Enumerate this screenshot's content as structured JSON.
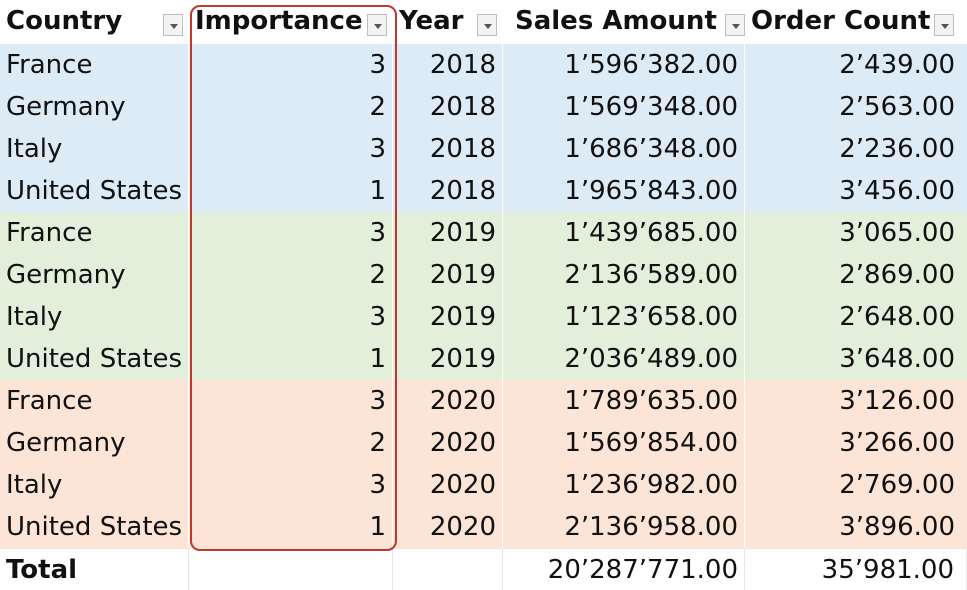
{
  "headers": [
    "Country",
    "Importance",
    "Year",
    "Sales Amount",
    "Order Count"
  ],
  "rows": [
    {
      "country": "France",
      "importance": "3",
      "year": "2018",
      "sales": "1’596’382.00",
      "orders": "2’439.00"
    },
    {
      "country": "Germany",
      "importance": "2",
      "year": "2018",
      "sales": "1’569’348.00",
      "orders": "2’563.00"
    },
    {
      "country": "Italy",
      "importance": "3",
      "year": "2018",
      "sales": "1’686’348.00",
      "orders": "2’236.00"
    },
    {
      "country": "United States",
      "importance": "1",
      "year": "2018",
      "sales": "1’965’843.00",
      "orders": "3’456.00"
    },
    {
      "country": "France",
      "importance": "3",
      "year": "2019",
      "sales": "1’439’685.00",
      "orders": "3’065.00"
    },
    {
      "country": "Germany",
      "importance": "2",
      "year": "2019",
      "sales": "2’136’589.00",
      "orders": "2’869.00"
    },
    {
      "country": "Italy",
      "importance": "3",
      "year": "2019",
      "sales": "1’123’658.00",
      "orders": "2’648.00"
    },
    {
      "country": "United States",
      "importance": "1",
      "year": "2019",
      "sales": "2’036’489.00",
      "orders": "3’648.00"
    },
    {
      "country": "France",
      "importance": "3",
      "year": "2020",
      "sales": "1’789’635.00",
      "orders": "3’126.00"
    },
    {
      "country": "Germany",
      "importance": "2",
      "year": "2020",
      "sales": "1’569’854.00",
      "orders": "3’266.00"
    },
    {
      "country": "Italy",
      "importance": "3",
      "year": "2020",
      "sales": "1’236’982.00",
      "orders": "2’769.00"
    },
    {
      "country": "United States",
      "importance": "1",
      "year": "2020",
      "sales": "2’136’958.00",
      "orders": "3’896.00"
    }
  ],
  "total": {
    "label": "Total",
    "importance": "",
    "year": "",
    "sales": "20’287’771.00",
    "orders": "35’981.00"
  },
  "colors": {
    "band_2018": "#ddebf7",
    "band_2019": "#e2efda",
    "band_2020": "#fce4d6",
    "highlight_border": "#c0392b"
  },
  "icons": {
    "filter": "filter-dropdown-icon"
  }
}
